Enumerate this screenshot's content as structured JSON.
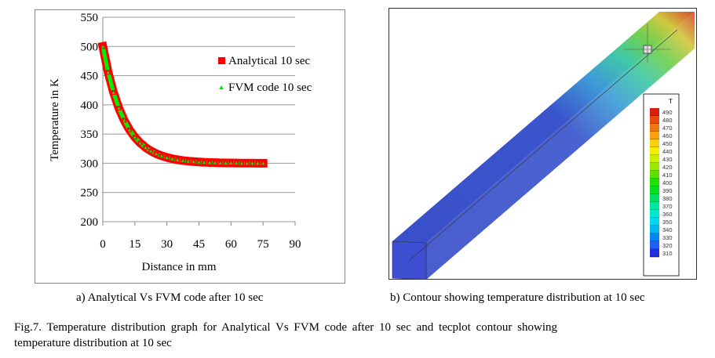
{
  "chart_data": {
    "type": "line",
    "xlabel": "Distance in mm",
    "ylabel": "Temperature in K",
    "xlim": [
      0,
      90
    ],
    "ylim": [
      200,
      550
    ],
    "xticks": [
      "0",
      "15",
      "30",
      "45",
      "60",
      "75",
      "90"
    ],
    "yticks": [
      "200",
      "250",
      "300",
      "350",
      "400",
      "450",
      "500",
      "550"
    ],
    "grid": true,
    "legend_position": "top-right",
    "x": [
      0,
      2.5,
      5,
      7.5,
      10,
      12.5,
      15,
      17.5,
      20,
      22.5,
      25,
      27.5,
      30,
      32.5,
      35,
      37.5,
      40,
      42.5,
      45,
      47.5,
      50,
      52.5,
      55,
      57.5,
      60,
      62.5,
      65,
      67.5,
      70,
      72.5,
      75
    ],
    "series": [
      {
        "name": "Analytical 10 sec",
        "color": "#ff0000",
        "values": [
          500,
          455.8,
          421.3,
          394.5,
          373.6,
          357.3,
          344.6,
          334.8,
          327.1,
          321.1,
          316.4,
          312.8,
          310.0,
          307.8,
          306.0,
          304.7,
          303.7,
          302.9,
          302.2,
          301.7,
          301.3,
          301.0,
          300.8,
          300.6,
          300.5,
          300.4,
          300.3,
          300.2,
          300.2,
          300.1,
          300.1
        ]
      },
      {
        "name": "FVM code 10 sec",
        "color": "#00ee00",
        "values": [
          500,
          455.8,
          421.3,
          394.5,
          373.6,
          357.3,
          344.6,
          334.8,
          327.1,
          321.1,
          316.4,
          312.8,
          310.0,
          307.8,
          306.0,
          304.7,
          303.7,
          302.9,
          302.2,
          301.7,
          301.3,
          301.0,
          300.8,
          300.6,
          300.5,
          300.4,
          300.3,
          300.2,
          300.2,
          300.1,
          300.1
        ]
      }
    ]
  },
  "contour": {
    "legend_title": "T",
    "levels": [
      "490",
      "480",
      "470",
      "460",
      "450",
      "440",
      "430",
      "420",
      "410",
      "400",
      "390",
      "380",
      "370",
      "360",
      "350",
      "340",
      "330",
      "320",
      "310"
    ],
    "colors": [
      "#d82010",
      "#e84a10",
      "#f07810",
      "#f8a010",
      "#f8d010",
      "#f0f000",
      "#c8f000",
      "#98e800",
      "#60e000",
      "#20e000",
      "#00e020",
      "#00e060",
      "#00e8a0",
      "#00e8d0",
      "#00d8f0",
      "#00b8f0",
      "#0088f0",
      "#2060f0",
      "#2030e0"
    ]
  },
  "captions": {
    "a": "a) Analytical Vs FVM code after 10 sec",
    "b": "b) Contour showing temperature distribution at 10 sec",
    "fig_line1": "Fig.7. Temperature distribution graph for Analytical Vs FVM code after 10 sec and tecplot contour showing",
    "fig_line2": "temperature distribution at 10 sec"
  }
}
